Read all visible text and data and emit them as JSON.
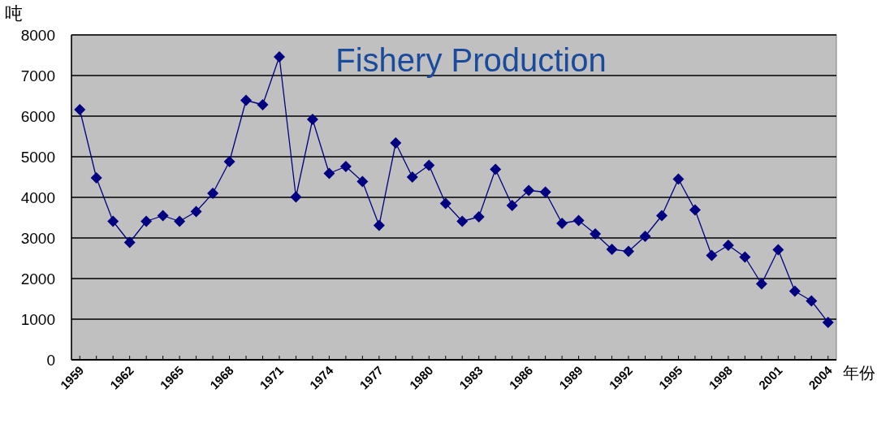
{
  "chart_data": {
    "type": "line",
    "title": "Fishery Production",
    "xlabel": "年份",
    "ylabel": "吨",
    "x": [
      1959,
      1960,
      1961,
      1962,
      1963,
      1964,
      1965,
      1966,
      1967,
      1968,
      1969,
      1970,
      1971,
      1972,
      1973,
      1974,
      1975,
      1976,
      1977,
      1978,
      1979,
      1980,
      1981,
      1982,
      1983,
      1984,
      1985,
      1986,
      1987,
      1988,
      1989,
      1990,
      1991,
      1992,
      1993,
      1994,
      1995,
      1996,
      1997,
      1998,
      1999,
      2000,
      2001,
      2002,
      2003,
      2004
    ],
    "series": [
      {
        "color": "#000080",
        "values": [
          6160,
          4480,
          3410,
          2890,
          3410,
          3550,
          3410,
          3650,
          4100,
          4880,
          6390,
          6280,
          7460,
          4010,
          5920,
          4590,
          4760,
          4390,
          3310,
          5340,
          4500,
          4790,
          3850,
          3410,
          3520,
          4690,
          3800,
          4170,
          4130,
          3360,
          3430,
          3100,
          2720,
          2670,
          3040,
          3550,
          4450,
          3690,
          2570,
          2820,
          2530,
          1870,
          2710,
          1690,
          1450,
          920
        ]
      }
    ],
    "xlim": [
      1958.5,
      2004.5
    ],
    "xticks": [
      1959,
      {
        "value": 1960,
        "label": null
      },
      {
        "value": 1961,
        "label": null
      },
      1962,
      {
        "value": 1963,
        "label": null
      },
      {
        "value": 1964,
        "label": null
      },
      1965,
      {
        "value": 1966,
        "label": null
      },
      {
        "value": 1967,
        "label": null
      },
      1968,
      {
        "value": 1969,
        "label": null
      },
      {
        "value": 1970,
        "label": null
      },
      1971,
      {
        "value": 1972,
        "label": null
      },
      {
        "value": 1973,
        "label": null
      },
      1974,
      {
        "value": 1975,
        "label": null
      },
      {
        "value": 1976,
        "label": null
      },
      1977,
      {
        "value": 1978,
        "label": null
      },
      {
        "value": 1979,
        "label": null
      },
      1980,
      {
        "value": 1981,
        "label": null
      },
      {
        "value": 1982,
        "label": null
      },
      1983,
      {
        "value": 1984,
        "label": null
      },
      {
        "value": 1985,
        "label": null
      },
      1986,
      {
        "value": 1987,
        "label": null
      },
      {
        "value": 1988,
        "label": null
      },
      1989,
      {
        "value": 1990,
        "label": null
      },
      {
        "value": 1991,
        "label": null
      },
      1992,
      {
        "value": 1993,
        "label": null
      },
      {
        "value": 1994,
        "label": null
      },
      1995,
      {
        "value": 1996,
        "label": null
      },
      {
        "value": 1997,
        "label": null
      },
      1998,
      {
        "value": 1999,
        "label": null
      },
      {
        "value": 2000,
        "label": null
      },
      2001,
      {
        "value": 2002,
        "label": null
      },
      {
        "value": 2003,
        "label": null
      },
      2004
    ],
    "ylim": [
      0,
      8000
    ],
    "yticks": [
      0,
      1000,
      2000,
      3000,
      4000,
      5000,
      6000,
      7000,
      8000
    ],
    "grid": "y",
    "marker": "diamond",
    "line_style": "solid"
  }
}
